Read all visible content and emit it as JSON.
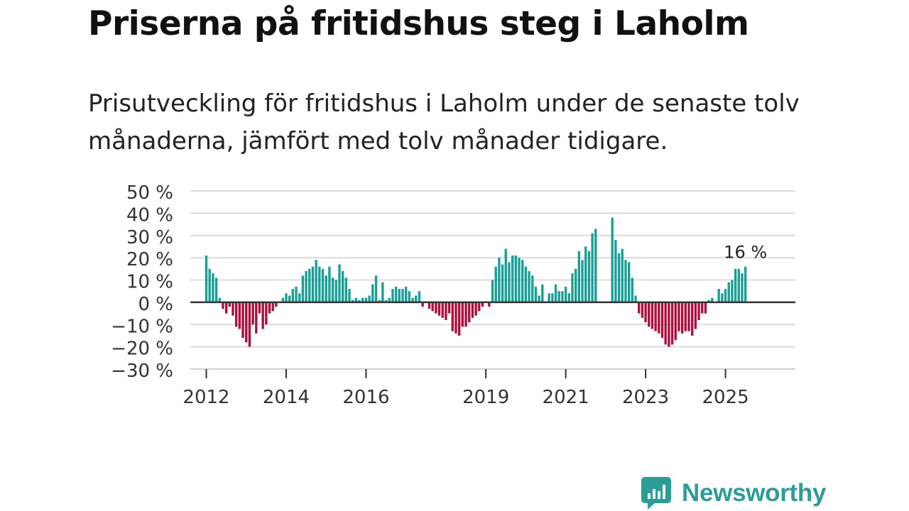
{
  "header": {
    "title": "Priserna på fritidshus steg i Laholm",
    "subtitle": "Prisutveckling för fritidshus i Laholm under de senaste tolv månaderna, jämfört med tolv månader tidigare."
  },
  "chart_data": {
    "type": "bar",
    "title": "Priserna på fritidshus steg i Laholm",
    "subtitle": "Prisutveckling för fritidshus i Laholm under de senaste tolv månaderna, jämfört med tolv månader tidigare.",
    "xlabel": "",
    "ylabel": "",
    "ylim": [
      -30,
      50
    ],
    "y_ticks": [
      50,
      40,
      30,
      20,
      10,
      0,
      -10,
      -20,
      -30
    ],
    "y_tick_labels": [
      "50 %",
      "40 %",
      "30 %",
      "20 %",
      "10 %",
      "0 %",
      "−10 %",
      "−20 %",
      "−30 %"
    ],
    "x_tick_labels": [
      "2012",
      "2014",
      "2016",
      "2019",
      "2021",
      "2023",
      "2025"
    ],
    "x_tick_years": [
      2012,
      2014,
      2016,
      2019,
      2021,
      2023,
      2025
    ],
    "x_range": [
      2011.6,
      2026.75
    ],
    "series_start": 2012.0,
    "step_years": 0.08333,
    "grid": true,
    "positive_color": "#1a9e96",
    "negative_color": "#a8103f",
    "last_value_label": "16 %",
    "values": [
      21,
      15,
      13,
      11,
      2,
      -3,
      -5,
      -2,
      -6,
      -11,
      -12,
      -16,
      -18,
      -20,
      -10,
      -14,
      -5,
      -12,
      -10,
      -5,
      -4,
      -2,
      0,
      2,
      4,
      3,
      6,
      7,
      4,
      12,
      14,
      15,
      16,
      19,
      16,
      15,
      12,
      16,
      11,
      10,
      17,
      14,
      11,
      6,
      1,
      2,
      1,
      2,
      2,
      3,
      8,
      12,
      1,
      9,
      1,
      2,
      6,
      7,
      6,
      6,
      7,
      5,
      2,
      3,
      5,
      -2,
      0,
      -3,
      -4,
      -5,
      -6,
      -7,
      -8,
      -5,
      -13,
      -14,
      -15,
      -11,
      -11,
      -9,
      -7,
      -6,
      -4,
      -2,
      0,
      -2,
      10,
      16,
      20,
      17,
      24,
      18,
      21,
      21,
      20,
      19,
      16,
      14,
      12,
      7,
      3,
      8,
      0,
      4,
      4,
      8,
      5,
      5,
      7,
      4,
      13,
      15,
      23,
      19,
      25,
      23,
      31,
      33,
      null,
      null,
      null,
      null,
      38,
      28,
      22,
      24,
      19,
      18,
      11,
      3,
      -5,
      -7,
      -9,
      -11,
      -12,
      -13,
      -14,
      -16,
      -19,
      -20,
      -19,
      -17,
      -13,
      -14,
      -13,
      -13,
      -15,
      -12,
      -8,
      -5,
      -5,
      1,
      2,
      0,
      6,
      4,
      6,
      9,
      10,
      15,
      15,
      13,
      16
    ]
  },
  "brand": {
    "name": "Newsworthy"
  }
}
